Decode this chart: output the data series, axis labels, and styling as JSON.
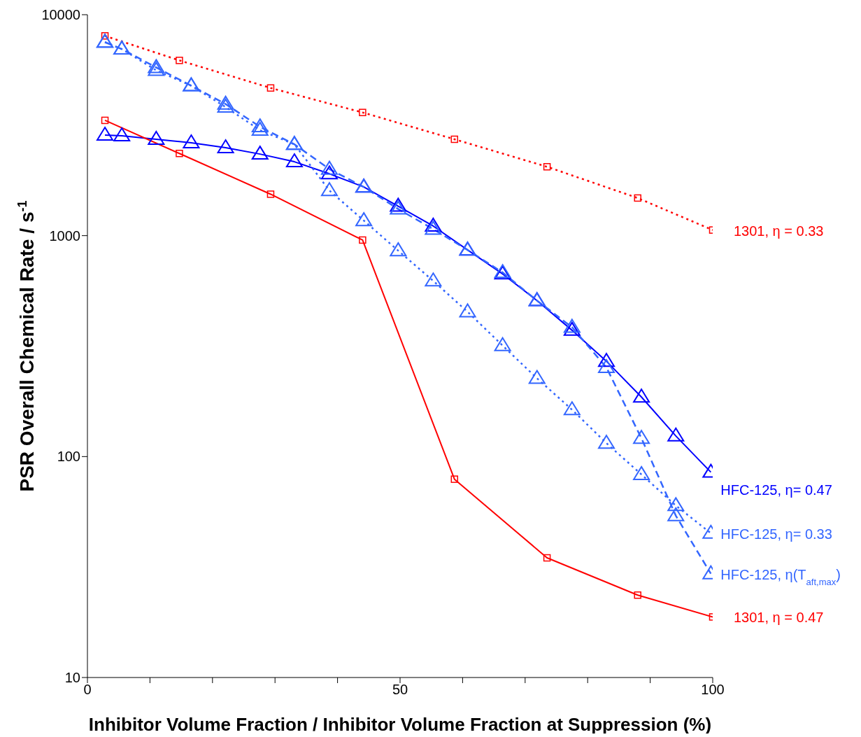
{
  "chart_data": {
    "type": "line",
    "xlabel": "Inhibitor Volume Fraction / Inhibitor Volume Fraction at Suppression (%)",
    "ylabel": "PSR Overall  Chemical Rate   / s$^{-1}$",
    "log": "y",
    "xlim": [
      0,
      100
    ],
    "xticks": [
      0,
      {
        "value": 10,
        "label": null
      },
      {
        "value": 20,
        "label": null
      },
      {
        "value": 30,
        "label": null
      },
      {
        "value": 40,
        "label": null
      },
      50,
      {
        "value": 60,
        "label": null
      },
      {
        "value": 70,
        "label": null
      },
      {
        "value": 80,
        "label": null
      },
      {
        "value": 90,
        "label": null
      },
      100
    ],
    "ylim": [
      10,
      10000
    ],
    "yticks": [
      10,
      100,
      1000,
      10000
    ],
    "series": [
      {
        "name": "1301, η = 0.33",
        "color": "#ff0000",
        "marker": "square",
        "line_style": "dotted",
        "x": [
          2.8,
          14.7,
          29.3,
          44,
          58.7,
          73.5,
          88,
          100
        ],
        "values": [
          8020,
          6210,
          4660,
          3610,
          2730,
          2050,
          1480,
          1060
        ]
      },
      {
        "name": "HFC-125, η= 0.47",
        "color": "#0000ff",
        "marker": "triangle",
        "line_style": "solid",
        "x": [
          2.8,
          5.5,
          11,
          16.6,
          22.1,
          27.6,
          33.1,
          38.7,
          44.2,
          49.7,
          55.3,
          60.8,
          66.4,
          71.9,
          77.5,
          83,
          88.6,
          94.1,
          99.7
        ],
        "values": [
          2850,
          2830,
          2730,
          2630,
          2500,
          2340,
          2160,
          1905,
          1660,
          1360,
          1105,
          861,
          671,
          508,
          373,
          270,
          186,
          124,
          85
        ]
      },
      {
        "name": "HFC-125, η= 0.33",
        "color": "#3366ff",
        "marker": "triangle",
        "line_style": "dotted",
        "x": [
          2.8,
          5.5,
          11,
          16.6,
          22.1,
          27.6,
          33.1,
          38.7,
          44.2,
          49.7,
          55.3,
          60.8,
          66.4,
          71.9,
          77.5,
          83,
          88.6,
          94.1,
          99.7
        ],
        "values": [
          7510,
          6990,
          5600,
          4770,
          3820,
          3000,
          2590,
          1600,
          1170,
          855,
          624,
          452,
          318,
          226,
          163,
          115,
          83,
          60,
          45
        ]
      },
      {
        "name": "HFC-125, η(T$_{aft,max}$)",
        "color": "#3366ff",
        "marker": "triangle",
        "line_style": "dashed",
        "x": [
          2.8,
          5.5,
          11,
          16.6,
          22.1,
          27.6,
          33.1,
          38.7,
          44.2,
          49.7,
          55.3,
          60.8,
          66.4,
          71.9,
          77.5,
          83,
          88.6,
          94.1,
          99.7
        ],
        "values": [
          7510,
          6990,
          5770,
          4770,
          3940,
          3110,
          2590,
          2000,
          1660,
          1320,
          1070,
          861,
          681,
          508,
          385,
          253,
          121,
          54,
          29.5
        ]
      },
      {
        "name": "1301, η = 0.47",
        "color": "#ff0000",
        "marker": "square",
        "line_style": "solid",
        "x": [
          2.8,
          14.7,
          29.3,
          44,
          58.7,
          73.5,
          88,
          100
        ],
        "values": [
          3325,
          2355,
          1540,
          955,
          79,
          34.8,
          23.6,
          18.8
        ]
      }
    ]
  }
}
